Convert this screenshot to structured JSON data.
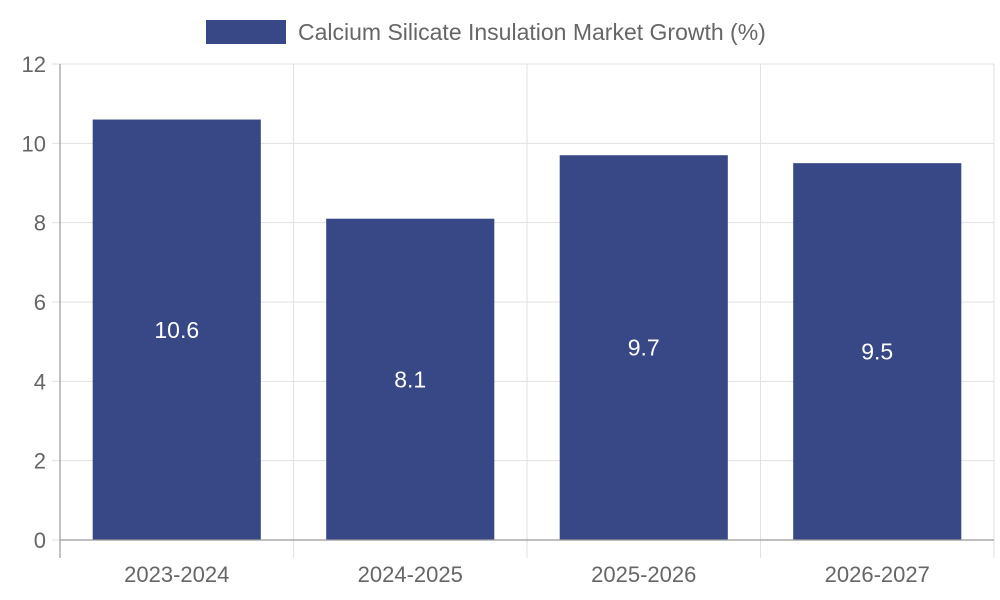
{
  "chart_data": {
    "type": "bar",
    "categories": [
      "2023-2024",
      "2024-2025",
      "2025-2026",
      "2026-2027"
    ],
    "series": [
      {
        "name": "Calcium Silicate Insulation Market Growth (%)",
        "values": [
          10.6,
          8.1,
          9.7,
          9.5
        ],
        "color": "#384785"
      }
    ],
    "data_labels": [
      "10.6",
      "8.1",
      "9.7",
      "9.5"
    ],
    "ylim": [
      0,
      12
    ],
    "yticks": [
      0,
      2,
      4,
      6,
      8,
      10,
      12
    ],
    "grid": true,
    "legend_position": "top-center",
    "title": "",
    "xlabel": "",
    "ylabel": ""
  }
}
